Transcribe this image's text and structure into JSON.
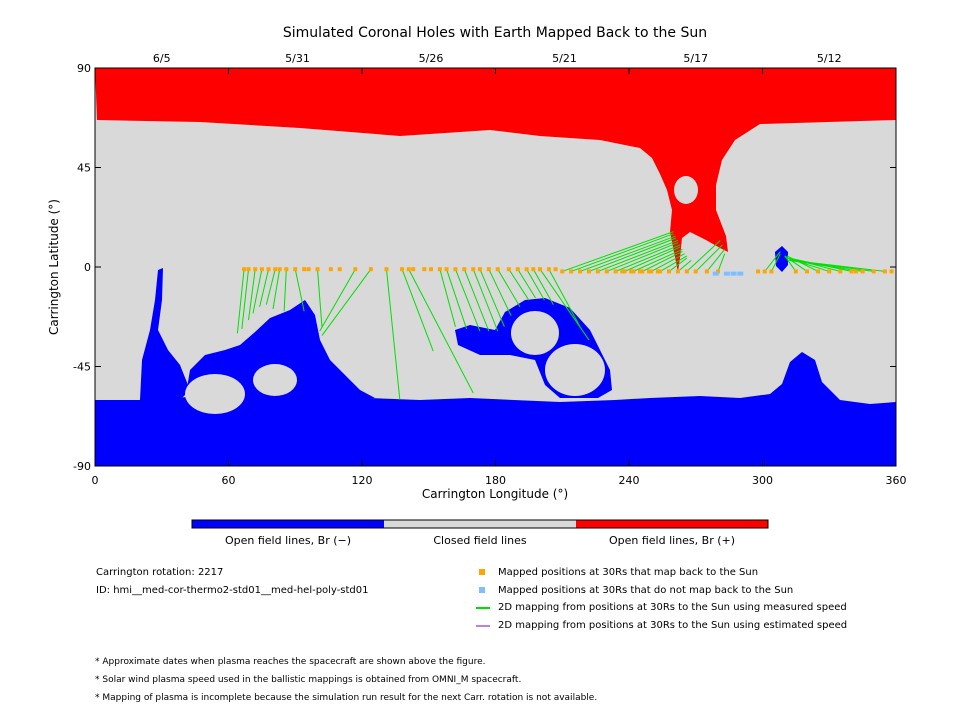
{
  "chart_data": {
    "type": "heatmap",
    "title": "Simulated Coronal Holes with Earth Mapped Back to the Sun",
    "xlabel": "Carrington Longitude (°)",
    "ylabel": "Carrington Latitude (°)",
    "xlim": [
      0,
      360
    ],
    "ylim": [
      -90,
      90
    ],
    "x_ticks": [
      "0",
      "60",
      "120",
      "180",
      "240",
      "300",
      "360"
    ],
    "y_ticks": [
      "90",
      "45",
      "0",
      "-45",
      "-90"
    ],
    "top_dates": [
      {
        "lon": 30,
        "label": "6/5"
      },
      {
        "lon": 91,
        "label": "5/31"
      },
      {
        "lon": 151,
        "label": "5/26"
      },
      {
        "lon": 211,
        "label": "5/21"
      },
      {
        "lon": 270,
        "label": "5/17"
      },
      {
        "lon": 330,
        "label": "5/12"
      }
    ],
    "colors": {
      "open_negative": "#0000ff",
      "closed": "#d9d9d9",
      "open_positive": "#ff0000",
      "mapped": "#ffa500",
      "not_mapped": "#7fbfff",
      "measured_line": "#00e000",
      "estimated_line": "#c080e0"
    },
    "mapping_lines": [
      {
        "from": [
          67,
          -1
        ],
        "to": [
          64,
          -30
        ]
      },
      {
        "from": [
          69,
          -1
        ],
        "to": [
          66,
          -28
        ]
      },
      {
        "from": [
          72,
          -1
        ],
        "to": [
          69,
          -24
        ]
      },
      {
        "from": [
          75,
          -1
        ],
        "to": [
          71,
          -21
        ]
      },
      {
        "from": [
          78,
          -1
        ],
        "to": [
          74,
          -18
        ]
      },
      {
        "from": [
          81,
          -1
        ],
        "to": [
          77,
          -17
        ]
      },
      {
        "from": [
          83,
          -1
        ],
        "to": [
          80,
          -19
        ]
      },
      {
        "from": [
          86,
          -1
        ],
        "to": [
          85,
          -20
        ]
      },
      {
        "from": [
          90,
          -1
        ],
        "to": [
          94,
          -20
        ]
      },
      {
        "from": [
          100,
          -1
        ],
        "to": [
          102,
          -27
        ]
      },
      {
        "from": [
          117,
          -1
        ],
        "to": [
          101,
          -29
        ]
      },
      {
        "from": [
          124,
          -1
        ],
        "to": [
          102,
          -31
        ]
      },
      {
        "from": [
          131,
          -1
        ],
        "to": [
          137,
          -60
        ]
      },
      {
        "from": [
          138,
          -1
        ],
        "to": [
          152,
          -38
        ]
      },
      {
        "from": [
          141,
          -1
        ],
        "to": [
          170,
          -57
        ]
      },
      {
        "from": [
          155,
          -1
        ],
        "to": [
          162,
          -27
        ]
      },
      {
        "from": [
          158,
          -1
        ],
        "to": [
          167,
          -28
        ]
      },
      {
        "from": [
          162,
          -1
        ],
        "to": [
          173,
          -29
        ]
      },
      {
        "from": [
          166,
          -1
        ],
        "to": [
          177,
          -29
        ]
      },
      {
        "from": [
          170,
          -1
        ],
        "to": [
          181,
          -29
        ]
      },
      {
        "from": [
          173,
          -1
        ],
        "to": [
          184,
          -27
        ]
      },
      {
        "from": [
          177,
          -1
        ],
        "to": [
          187,
          -22
        ]
      },
      {
        "from": [
          181,
          -1
        ],
        "to": [
          191,
          -18
        ]
      },
      {
        "from": [
          186,
          -1
        ],
        "to": [
          195,
          -15
        ]
      },
      {
        "from": [
          190,
          -1
        ],
        "to": [
          198,
          -14
        ]
      },
      {
        "from": [
          194,
          -1
        ],
        "to": [
          202,
          -15
        ]
      },
      {
        "from": [
          197,
          -1
        ],
        "to": [
          206,
          -17
        ]
      },
      {
        "from": [
          200,
          -1
        ],
        "to": [
          222,
          -33
        ]
      },
      {
        "from": [
          204,
          -1
        ],
        "to": [
          218,
          -27
        ]
      },
      {
        "from": [
          210,
          -2
        ],
        "to": [
          260,
          16
        ]
      },
      {
        "from": [
          214,
          -2
        ],
        "to": [
          260,
          15
        ]
      },
      {
        "from": [
          218,
          -2
        ],
        "to": [
          261,
          14
        ]
      },
      {
        "from": [
          222,
          -2
        ],
        "to": [
          261,
          13
        ]
      },
      {
        "from": [
          226,
          -2
        ],
        "to": [
          262,
          12
        ]
      },
      {
        "from": [
          230,
          -2
        ],
        "to": [
          262,
          11
        ]
      },
      {
        "from": [
          234,
          -2
        ],
        "to": [
          263,
          10
        ]
      },
      {
        "from": [
          238,
          -2
        ],
        "to": [
          263,
          9
        ]
      },
      {
        "from": [
          242,
          -2
        ],
        "to": [
          264,
          8
        ]
      },
      {
        "from": [
          246,
          -2
        ],
        "to": [
          264,
          7
        ]
      },
      {
        "from": [
          250,
          -2
        ],
        "to": [
          265,
          6
        ]
      },
      {
        "from": [
          254,
          -2
        ],
        "to": [
          266,
          5
        ]
      },
      {
        "from": [
          258,
          -2
        ],
        "to": [
          266,
          4
        ]
      },
      {
        "from": [
          262,
          -2
        ],
        "to": [
          268,
          3
        ]
      },
      {
        "from": [
          266,
          -2
        ],
        "to": [
          281,
          12
        ]
      },
      {
        "from": [
          270,
          -2
        ],
        "to": [
          282,
          10
        ]
      },
      {
        "from": [
          275,
          -2
        ],
        "to": [
          283,
          8
        ]
      },
      {
        "from": [
          280,
          -2
        ],
        "to": [
          283,
          6
        ]
      },
      {
        "from": [
          301,
          -2
        ],
        "to": [
          308,
          7
        ]
      },
      {
        "from": [
          304,
          -2
        ],
        "to": [
          308,
          6
        ]
      },
      {
        "from": [
          315,
          -2
        ],
        "to": [
          310,
          5
        ]
      },
      {
        "from": [
          320,
          -2
        ],
        "to": [
          310,
          5
        ]
      },
      {
        "from": [
          325,
          -2
        ],
        "to": [
          311,
          5
        ]
      },
      {
        "from": [
          330,
          -2
        ],
        "to": [
          311,
          4
        ]
      },
      {
        "from": [
          335,
          -2
        ],
        "to": [
          312,
          4
        ]
      },
      {
        "from": [
          340,
          -2
        ],
        "to": [
          312,
          4
        ]
      },
      {
        "from": [
          345,
          -2
        ],
        "to": [
          312,
          3
        ]
      },
      {
        "from": [
          350,
          -2
        ],
        "to": [
          313,
          3
        ]
      },
      {
        "from": [
          355,
          -2
        ],
        "to": [
          313,
          3
        ]
      }
    ],
    "not_mapped_points": [
      [
        279,
        -3
      ],
      [
        284,
        -3
      ],
      [
        287,
        -3
      ],
      [
        290,
        -3
      ]
    ],
    "extra_mapped_points": [
      [
        94,
        -1
      ],
      [
        96,
        -1
      ],
      [
        106,
        -1
      ],
      [
        110,
        -1
      ],
      [
        143,
        -1
      ],
      [
        148,
        -1
      ],
      [
        151,
        -1
      ],
      [
        207,
        -1
      ],
      [
        237,
        -2
      ],
      [
        241,
        -2
      ],
      [
        245,
        -2
      ],
      [
        249,
        -2
      ],
      [
        253,
        -2
      ],
      [
        298,
        -2
      ],
      [
        342,
        -2
      ],
      [
        358,
        -2
      ]
    ]
  },
  "colorbar": {
    "segments": [
      {
        "label": "Open field lines, Br (−)",
        "color": "#0000ff"
      },
      {
        "label": "Closed field lines",
        "color": "#d9d9d9"
      },
      {
        "label": "Open field lines, Br (+)",
        "color": "#ff0000"
      }
    ]
  },
  "info": {
    "rotation": "Carrington rotation: 2217",
    "id": "ID: hmi__med-cor-thermo2-std01__med-hel-poly-std01"
  },
  "legend": [
    {
      "label": "Mapped positions at 30Rs that map back to the Sun",
      "color": "#ffa500",
      "kind": "square"
    },
    {
      "label": "Mapped positions at 30Rs that do not map back to the Sun",
      "color": "#7fbfff",
      "kind": "square"
    },
    {
      "label": "2D mapping from positions at 30Rs to the Sun using measured speed",
      "color": "#00e000",
      "kind": "line"
    },
    {
      "label": "2D mapping from positions at 30Rs to the Sun using estimated speed",
      "color": "#c080e0",
      "kind": "line"
    }
  ],
  "footnotes": [
    "* Approximate dates when plasma reaches the spacecraft are shown above the figure.",
    "* Solar wind plasma speed used in the ballistic mappings is obtained from OMNI_M spacecraft.",
    "* Mapping of plasma is incomplete because the simulation run result for the next Carr. rotation is not available."
  ]
}
